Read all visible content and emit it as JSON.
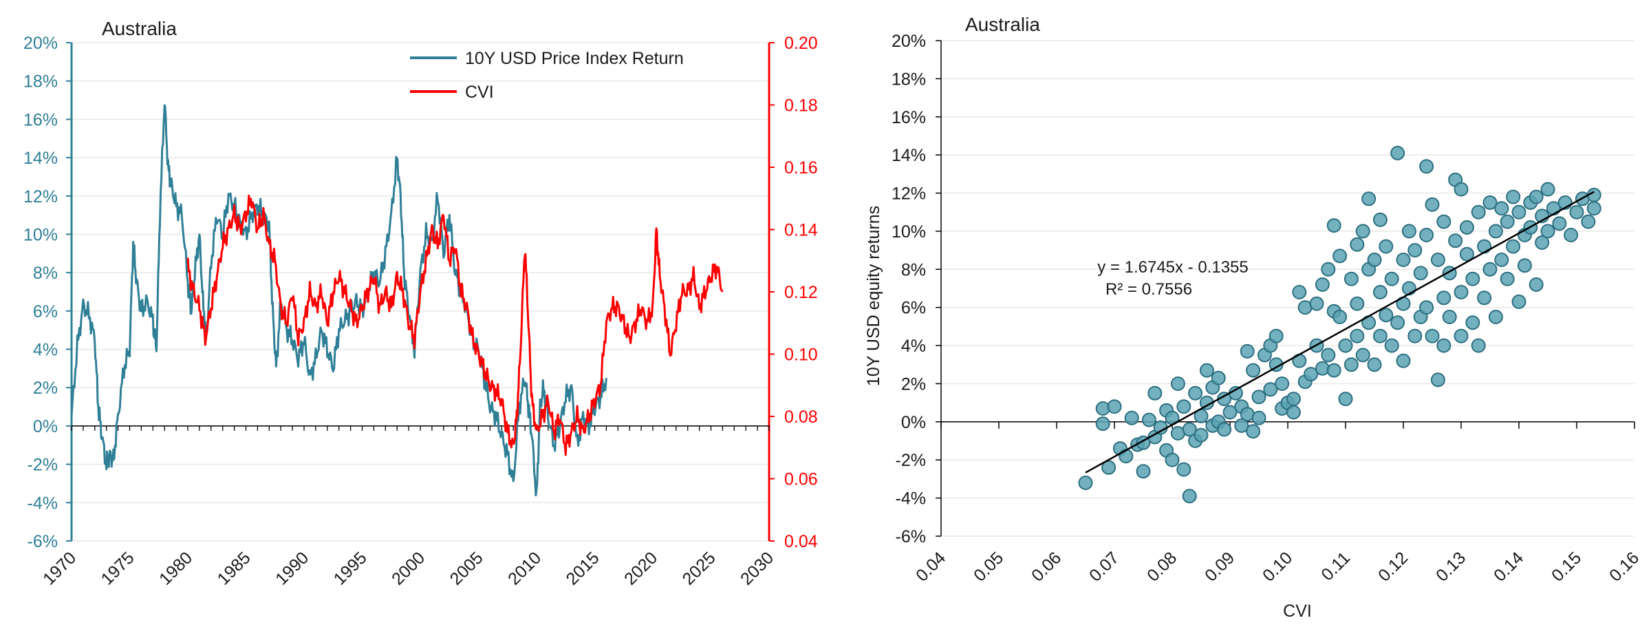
{
  "colors": {
    "teal": "#2f7f96",
    "red": "#ff0000",
    "scatter_fill": "#5aa3b4",
    "scatter_stroke": "#2c6f80",
    "grid": "#e8e8e8",
    "axis": "#000000",
    "text": "#1a1a1a"
  },
  "chart_data": [
    {
      "type": "line",
      "title": "Australia",
      "xlim": [
        1970,
        2030
      ],
      "x_ticks": [
        "1970",
        "1975",
        "1980",
        "1985",
        "1990",
        "1995",
        "2000",
        "2005",
        "2010",
        "2015",
        "2020",
        "2025",
        "2030"
      ],
      "y_left_ticks": [
        "20%",
        "18%",
        "16%",
        "14%",
        "12%",
        "10%",
        "8%",
        "6%",
        "4%",
        "2%",
        "0%",
        "-2%",
        "-4%",
        "-6%"
      ],
      "y_left_lim": [
        -0.06,
        0.2
      ],
      "y_right_ticks": [
        "0.20",
        "0.18",
        "0.16",
        "0.14",
        "0.12",
        "0.10",
        "0.08",
        "0.06",
        "0.04"
      ],
      "y_right_lim": [
        0.04,
        0.2
      ],
      "legend_position": "top-center",
      "series": [
        {
          "name": "10Y USD Price Index Return",
          "axis": "left",
          "color": "#2f7f96",
          "x": [
            1970.0,
            1970.5,
            1971.0,
            1971.5,
            1972.0,
            1972.3,
            1972.6,
            1973.0,
            1973.3,
            1973.6,
            1974.0,
            1974.5,
            1975.0,
            1975.3,
            1975.6,
            1976.0,
            1976.5,
            1977.0,
            1977.3,
            1977.6,
            1978.0,
            1978.3,
            1978.6,
            1979.0,
            1979.5,
            1980.0,
            1980.3,
            1980.6,
            1981.0,
            1981.3,
            1981.6,
            1982.0,
            1982.5,
            1983.0,
            1983.5,
            1984.0,
            1984.5,
            1985.0,
            1985.5,
            1986.0,
            1986.5,
            1987.0,
            1987.3,
            1987.6,
            1988.0,
            1988.5,
            1989.0,
            1989.5,
            1990.0,
            1990.5,
            1991.0,
            1991.5,
            1992.0,
            1992.5,
            1993.0,
            1993.5,
            1994.0,
            1994.5,
            1995.0,
            1995.5,
            1996.0,
            1996.5,
            1997.0,
            1997.5,
            1998.0,
            1998.3,
            1998.6,
            1999.0,
            1999.5,
            2000.0,
            2000.5,
            2001.0,
            2001.5,
            2002.0,
            2002.5,
            2003.0,
            2003.5,
            2004.0,
            2004.5,
            2005.0,
            2005.5,
            2006.0,
            2006.5,
            2007.0,
            2007.5,
            2008.0,
            2008.5,
            2009.0,
            2009.3,
            2009.6,
            2010.0,
            2010.3,
            2010.6,
            2011.0,
            2011.5,
            2012.0,
            2012.5,
            2013.0,
            2013.5,
            2014.0,
            2014.5,
            2015.0,
            2015.5,
            2016.0
          ],
          "values": [
            0.005,
            0.042,
            0.063,
            0.058,
            0.045,
            0.01,
            -0.005,
            -0.02,
            -0.015,
            -0.018,
            0.005,
            0.03,
            0.04,
            0.095,
            0.075,
            0.06,
            0.065,
            0.055,
            0.04,
            0.11,
            0.17,
            0.135,
            0.125,
            0.115,
            0.11,
            0.075,
            0.06,
            0.08,
            0.1,
            0.065,
            0.045,
            0.085,
            0.11,
            0.1,
            0.12,
            0.115,
            0.105,
            0.1,
            0.11,
            0.115,
            0.11,
            0.105,
            0.06,
            0.03,
            0.065,
            0.05,
            0.045,
            0.035,
            0.045,
            0.025,
            0.035,
            0.05,
            0.04,
            0.03,
            0.05,
            0.055,
            0.06,
            0.065,
            0.06,
            0.07,
            0.08,
            0.075,
            0.09,
            0.11,
            0.14,
            0.12,
            0.08,
            0.06,
            0.04,
            0.08,
            0.1,
            0.095,
            0.12,
            0.09,
            0.11,
            0.08,
            0.07,
            0.06,
            0.045,
            0.04,
            0.025,
            0.01,
            0.005,
            -0.005,
            -0.015,
            -0.03,
            0.01,
            0.025,
            0.01,
            -0.005,
            -0.038,
            0.01,
            0.02,
            0.005,
            -0.01,
            0.0,
            0.015,
            0.02,
            -0.01,
            0.005,
            0.0,
            0.01,
            0.015,
            0.025
          ]
        },
        {
          "name": "CVI",
          "axis": "right",
          "color": "#ff0000",
          "x": [
            1980.0,
            1980.5,
            1981.0,
            1981.5,
            1982.0,
            1982.5,
            1983.0,
            1983.5,
            1984.0,
            1984.5,
            1985.0,
            1985.5,
            1986.0,
            1986.5,
            1987.0,
            1987.5,
            1988.0,
            1988.5,
            1989.0,
            1989.5,
            1990.0,
            1990.5,
            1991.0,
            1991.5,
            1992.0,
            1992.5,
            1993.0,
            1993.5,
            1994.0,
            1994.5,
            1995.0,
            1995.5,
            1996.0,
            1996.5,
            1997.0,
            1997.5,
            1998.0,
            1998.5,
            1999.0,
            1999.5,
            2000.0,
            2000.5,
            2001.0,
            2001.5,
            2002.0,
            2002.5,
            2003.0,
            2003.5,
            2004.0,
            2004.5,
            2005.0,
            2005.5,
            2006.0,
            2006.5,
            2007.0,
            2007.5,
            2008.0,
            2008.3,
            2008.6,
            2009.0,
            2009.3,
            2009.6,
            2010.0,
            2010.5,
            2011.0,
            2011.5,
            2012.0,
            2012.5,
            2013.0,
            2013.5,
            2014.0,
            2014.5,
            2015.0,
            2015.5,
            2016.0,
            2016.5,
            2017.0,
            2017.5,
            2018.0,
            2018.5,
            2019.0,
            2019.5,
            2020.0,
            2020.3,
            2020.6,
            2021.0,
            2021.5,
            2022.0,
            2022.5,
            2023.0,
            2023.5,
            2024.0,
            2024.5,
            2025.0,
            2025.5,
            2026.0
          ],
          "values": [
            0.128,
            0.12,
            0.115,
            0.105,
            0.115,
            0.125,
            0.135,
            0.14,
            0.145,
            0.14,
            0.145,
            0.15,
            0.14,
            0.145,
            0.135,
            0.13,
            0.115,
            0.11,
            0.12,
            0.105,
            0.11,
            0.12,
            0.115,
            0.12,
            0.11,
            0.12,
            0.125,
            0.12,
            0.115,
            0.11,
            0.115,
            0.12,
            0.125,
            0.115,
            0.12,
            0.115,
            0.125,
            0.12,
            0.11,
            0.105,
            0.12,
            0.13,
            0.14,
            0.135,
            0.145,
            0.13,
            0.135,
            0.12,
            0.115,
            0.105,
            0.1,
            0.095,
            0.09,
            0.088,
            0.085,
            0.075,
            0.07,
            0.08,
            0.1,
            0.135,
            0.11,
            0.085,
            0.075,
            0.08,
            0.085,
            0.075,
            0.08,
            0.07,
            0.075,
            0.08,
            0.075,
            0.08,
            0.085,
            0.09,
            0.11,
            0.115,
            0.115,
            0.11,
            0.105,
            0.11,
            0.115,
            0.11,
            0.115,
            0.14,
            0.125,
            0.115,
            0.1,
            0.11,
            0.12,
            0.12,
            0.125,
            0.115,
            0.12,
            0.125,
            0.128,
            0.12
          ]
        }
      ]
    },
    {
      "type": "scatter",
      "title": "Australia",
      "xlabel": "CVI",
      "ylabel": "10Y USD equity returns",
      "xlim": [
        0.04,
        0.16
      ],
      "ylim": [
        -0.06,
        0.2
      ],
      "x_ticks": [
        "0.04",
        "0.05",
        "0.06",
        "0.07",
        "0.08",
        "0.09",
        "0.10",
        "0.11",
        "0.12",
        "0.13",
        "0.14",
        "0.15",
        "0.16"
      ],
      "y_ticks": [
        "20%",
        "18%",
        "16%",
        "14%",
        "12%",
        "10%",
        "8%",
        "6%",
        "4%",
        "2%",
        "0%",
        "-2%",
        "-4%",
        "-6%"
      ],
      "trendline": {
        "slope": 1.6745,
        "intercept": -0.1355,
        "x_range": [
          0.065,
          0.153
        ]
      },
      "equation": "y = 1.6745x - 0.1355",
      "r2_label": "R² = 0.7556",
      "points": [
        [
          0.065,
          -0.032
        ],
        [
          0.068,
          0.007
        ],
        [
          0.068,
          -0.001
        ],
        [
          0.069,
          -0.024
        ],
        [
          0.07,
          0.008
        ],
        [
          0.071,
          -0.014
        ],
        [
          0.072,
          -0.018
        ],
        [
          0.073,
          0.002
        ],
        [
          0.074,
          -0.012
        ],
        [
          0.075,
          -0.026
        ],
        [
          0.075,
          -0.011
        ],
        [
          0.076,
          0.001
        ],
        [
          0.077,
          -0.008
        ],
        [
          0.077,
          0.015
        ],
        [
          0.078,
          -0.003
        ],
        [
          0.079,
          -0.015
        ],
        [
          0.079,
          0.006
        ],
        [
          0.08,
          -0.02
        ],
        [
          0.08,
          0.002
        ],
        [
          0.081,
          -0.006
        ],
        [
          0.081,
          0.02
        ],
        [
          0.082,
          -0.025
        ],
        [
          0.082,
          0.008
        ],
        [
          0.083,
          -0.004
        ],
        [
          0.083,
          -0.039
        ],
        [
          0.084,
          0.015
        ],
        [
          0.084,
          -0.01
        ],
        [
          0.085,
          0.003
        ],
        [
          0.085,
          -0.007
        ],
        [
          0.086,
          0.027
        ],
        [
          0.086,
          0.01
        ],
        [
          0.087,
          -0.002
        ],
        [
          0.087,
          0.018
        ],
        [
          0.088,
          0.023
        ],
        [
          0.088,
          0.0
        ],
        [
          0.089,
          -0.004
        ],
        [
          0.089,
          0.012
        ],
        [
          0.09,
          0.005
        ],
        [
          0.091,
          0.015
        ],
        [
          0.092,
          -0.002
        ],
        [
          0.092,
          0.008
        ],
        [
          0.093,
          0.004
        ],
        [
          0.093,
          0.037
        ],
        [
          0.094,
          0.027
        ],
        [
          0.094,
          -0.005
        ],
        [
          0.095,
          0.013
        ],
        [
          0.095,
          0.002
        ],
        [
          0.096,
          0.035
        ],
        [
          0.097,
          0.04
        ],
        [
          0.097,
          0.017
        ],
        [
          0.098,
          0.045
        ],
        [
          0.098,
          0.03
        ],
        [
          0.099,
          0.02
        ],
        [
          0.099,
          0.007
        ],
        [
          0.1,
          0.01
        ],
        [
          0.101,
          0.012
        ],
        [
          0.101,
          0.005
        ],
        [
          0.102,
          0.032
        ],
        [
          0.102,
          0.068
        ],
        [
          0.103,
          0.021
        ],
        [
          0.103,
          0.06
        ],
        [
          0.104,
          0.025
        ],
        [
          0.105,
          0.062
        ],
        [
          0.105,
          0.04
        ],
        [
          0.106,
          0.072
        ],
        [
          0.106,
          0.028
        ],
        [
          0.107,
          0.035
        ],
        [
          0.107,
          0.08
        ],
        [
          0.108,
          0.058
        ],
        [
          0.108,
          0.027
        ],
        [
          0.108,
          0.103
        ],
        [
          0.109,
          0.055
        ],
        [
          0.109,
          0.087
        ],
        [
          0.11,
          0.04
        ],
        [
          0.11,
          0.012
        ],
        [
          0.111,
          0.075
        ],
        [
          0.111,
          0.03
        ],
        [
          0.112,
          0.093
        ],
        [
          0.112,
          0.062
        ],
        [
          0.112,
          0.045
        ],
        [
          0.113,
          0.1
        ],
        [
          0.113,
          0.035
        ],
        [
          0.114,
          0.08
        ],
        [
          0.114,
          0.052
        ],
        [
          0.114,
          0.117
        ],
        [
          0.115,
          0.085
        ],
        [
          0.115,
          0.03
        ],
        [
          0.116,
          0.068
        ],
        [
          0.116,
          0.045
        ],
        [
          0.116,
          0.106
        ],
        [
          0.117,
          0.056
        ],
        [
          0.117,
          0.092
        ],
        [
          0.118,
          0.075
        ],
        [
          0.118,
          0.04
        ],
        [
          0.119,
          0.141
        ],
        [
          0.119,
          0.052
        ],
        [
          0.12,
          0.085
        ],
        [
          0.12,
          0.062
        ],
        [
          0.12,
          0.032
        ],
        [
          0.121,
          0.1
        ],
        [
          0.121,
          0.07
        ],
        [
          0.122,
          0.045
        ],
        [
          0.122,
          0.09
        ],
        [
          0.123,
          0.055
        ],
        [
          0.123,
          0.078
        ],
        [
          0.124,
          0.134
        ],
        [
          0.124,
          0.06
        ],
        [
          0.124,
          0.098
        ],
        [
          0.125,
          0.045
        ],
        [
          0.125,
          0.114
        ],
        [
          0.126,
          0.022
        ],
        [
          0.126,
          0.085
        ],
        [
          0.127,
          0.065
        ],
        [
          0.127,
          0.04
        ],
        [
          0.127,
          0.105
        ],
        [
          0.128,
          0.078
        ],
        [
          0.128,
          0.055
        ],
        [
          0.129,
          0.127
        ],
        [
          0.129,
          0.095
        ],
        [
          0.13,
          0.068
        ],
        [
          0.13,
          0.045
        ],
        [
          0.13,
          0.122
        ],
        [
          0.131,
          0.088
        ],
        [
          0.131,
          0.102
        ],
        [
          0.132,
          0.052
        ],
        [
          0.132,
          0.075
        ],
        [
          0.133,
          0.11
        ],
        [
          0.133,
          0.04
        ],
        [
          0.134,
          0.092
        ],
        [
          0.134,
          0.065
        ],
        [
          0.135,
          0.115
        ],
        [
          0.135,
          0.08
        ],
        [
          0.136,
          0.1
        ],
        [
          0.136,
          0.055
        ],
        [
          0.137,
          0.112
        ],
        [
          0.137,
          0.085
        ],
        [
          0.138,
          0.075
        ],
        [
          0.138,
          0.105
        ],
        [
          0.139,
          0.118
        ],
        [
          0.139,
          0.092
        ],
        [
          0.14,
          0.063
        ],
        [
          0.14,
          0.11
        ],
        [
          0.141,
          0.098
        ],
        [
          0.141,
          0.082
        ],
        [
          0.142,
          0.115
        ],
        [
          0.142,
          0.102
        ],
        [
          0.143,
          0.072
        ],
        [
          0.143,
          0.118
        ],
        [
          0.144,
          0.094
        ],
        [
          0.144,
          0.108
        ],
        [
          0.145,
          0.122
        ],
        [
          0.145,
          0.1
        ],
        [
          0.146,
          0.112
        ],
        [
          0.147,
          0.104
        ],
        [
          0.148,
          0.115
        ],
        [
          0.149,
          0.098
        ],
        [
          0.15,
          0.11
        ],
        [
          0.151,
          0.117
        ],
        [
          0.152,
          0.105
        ],
        [
          0.153,
          0.112
        ],
        [
          0.153,
          0.119
        ]
      ]
    }
  ]
}
